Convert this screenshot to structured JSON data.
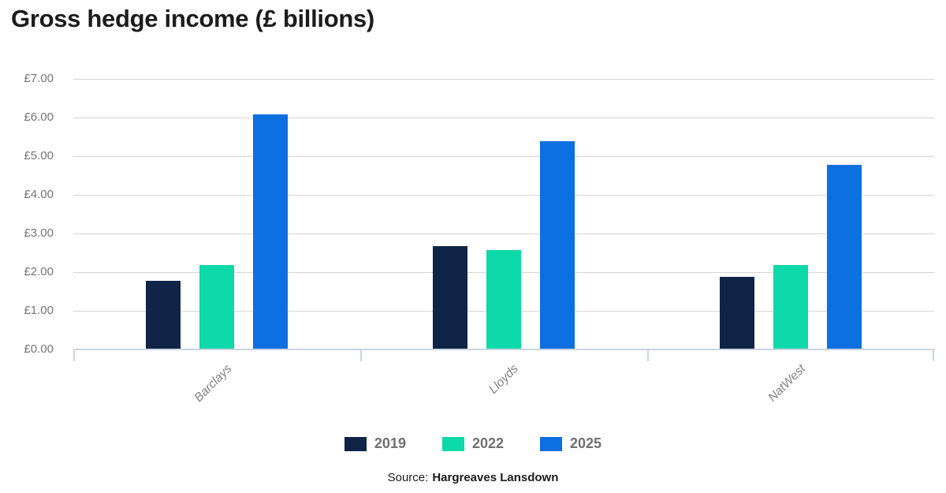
{
  "header": {
    "title": "Gross hedge income (£ billions)"
  },
  "chart_data": {
    "type": "bar",
    "title": "Gross hedge income (£ billions)",
    "categories": [
      "Barclays",
      "Lloyds",
      "NatWest"
    ],
    "series": [
      {
        "name": "2019",
        "color": "#0f2447",
        "values": [
          1.78,
          2.68,
          1.88
        ]
      },
      {
        "name": "2022",
        "color": "#0ed9a8",
        "values": [
          2.18,
          2.57,
          2.18
        ]
      },
      {
        "name": "2025",
        "color": "#0d70e0",
        "values": [
          6.08,
          5.38,
          4.78
        ]
      }
    ],
    "ylim": [
      0,
      7
    ],
    "y_ticks": [
      "£7.00",
      "£6.00",
      "£5.00",
      "£4.00",
      "£3.00",
      "£2.00",
      "£1.00",
      "£0.00"
    ],
    "grid": true,
    "legend_position": "bottom"
  },
  "source": {
    "prefix": "Source:",
    "name": "Hargreaves Lansdown"
  },
  "colors": {
    "gridline": "#d6d6d6",
    "axis_line": "#cbd4df",
    "title_text": "#1c1c1c",
    "y_tick_label": "#757575",
    "category_label": "#828282",
    "legend_text": "#707070"
  }
}
